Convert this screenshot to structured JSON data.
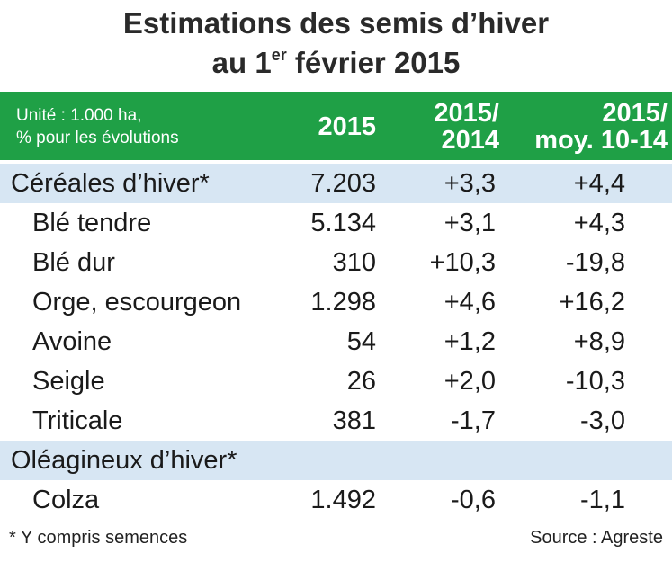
{
  "title": {
    "line1": "Estimations des semis d’hiver",
    "line2_prefix": "au 1",
    "line2_sup": "er",
    "line2_suffix": " février 2015"
  },
  "header": {
    "unit_line1": "Unité : 1.000 ha,",
    "unit_line2": "% pour les évolutions",
    "col_2015": "2015",
    "col_vs2014_line1": "2015/",
    "col_vs2014_line2": "2014",
    "col_vsmoy_line1": "2015/",
    "col_vsmoy_line2": "moy. 10-14"
  },
  "footer": {
    "note": "* Y compris semences",
    "source": "Source : Agreste"
  },
  "chart_data": {
    "type": "table",
    "columns": [
      "",
      "2015",
      "2015/2014",
      "2015/moy. 10-14"
    ],
    "unit": "Unité : 1.000 ha, % pour les évolutions",
    "rows": [
      {
        "label": "Céréales d’hiver*",
        "kind": "category",
        "v2015": "7.203",
        "vs2014": "+3,3",
        "vsmoy": "+4,4"
      },
      {
        "label": "Blé tendre",
        "kind": "item",
        "v2015": "5.134",
        "vs2014": "+3,1",
        "vsmoy": "+4,3"
      },
      {
        "label": "Blé dur",
        "kind": "item",
        "v2015": "310",
        "vs2014": "+10,3",
        "vsmoy": "-19,8"
      },
      {
        "label": "Orge, escourgeon",
        "kind": "item",
        "v2015": "1.298",
        "vs2014": "+4,6",
        "vsmoy": "+16,2"
      },
      {
        "label": "Avoine",
        "kind": "item",
        "v2015": "54",
        "vs2014": "+1,2",
        "vsmoy": "+8,9"
      },
      {
        "label": "Seigle",
        "kind": "item",
        "v2015": "26",
        "vs2014": "+2,0",
        "vsmoy": "-10,3"
      },
      {
        "label": "Triticale",
        "kind": "item",
        "v2015": "381",
        "vs2014": "-1,7",
        "vsmoy": "-3,0"
      },
      {
        "label": "Oléagineux d’hiver*",
        "kind": "category",
        "v2015": "",
        "vs2014": "",
        "vsmoy": ""
      },
      {
        "label": "Colza",
        "kind": "item",
        "v2015": "1.492",
        "vs2014": "-0,6",
        "vsmoy": "-1,1"
      }
    ]
  }
}
